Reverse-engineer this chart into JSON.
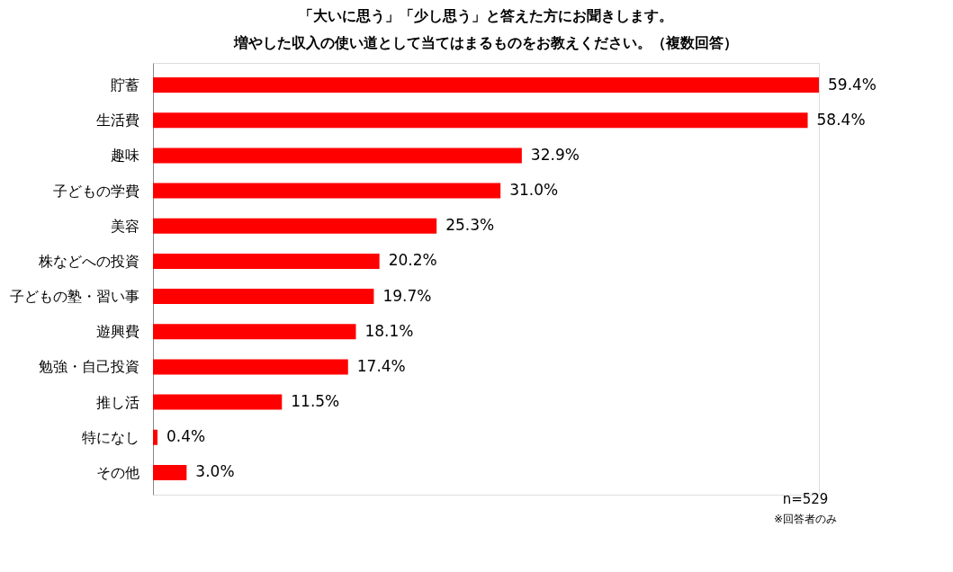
{
  "chart_data": {
    "type": "bar",
    "orientation": "horizontal",
    "title": "「大いに思う」「少し思う」と答えた方にお聞きします。",
    "subtitle": "増やした収入の使い道として当てはまるものをお教えください。（複数回答）",
    "categories": [
      "貯蓄",
      "生活費",
      "趣味",
      "子どもの学費",
      "美容",
      "株などへの投資",
      "子どもの塾・習い事",
      "遊興費",
      "勉強・自己投資",
      "推し活",
      "特になし",
      "その他"
    ],
    "values": [
      59.4,
      58.4,
      32.9,
      31.0,
      25.3,
      20.2,
      19.7,
      18.1,
      17.4,
      11.5,
      0.4,
      3.0
    ],
    "value_labels": [
      "59.4%",
      "58.4%",
      "32.9%",
      "31.0%",
      "25.3%",
      "20.2%",
      "19.7%",
      "18.1%",
      "17.4%",
      "11.5%",
      "0.4%",
      "3.0%"
    ],
    "color": "#ff0000",
    "grid": false,
    "annotations": [
      "n=529",
      "※回答者のみ"
    ]
  }
}
